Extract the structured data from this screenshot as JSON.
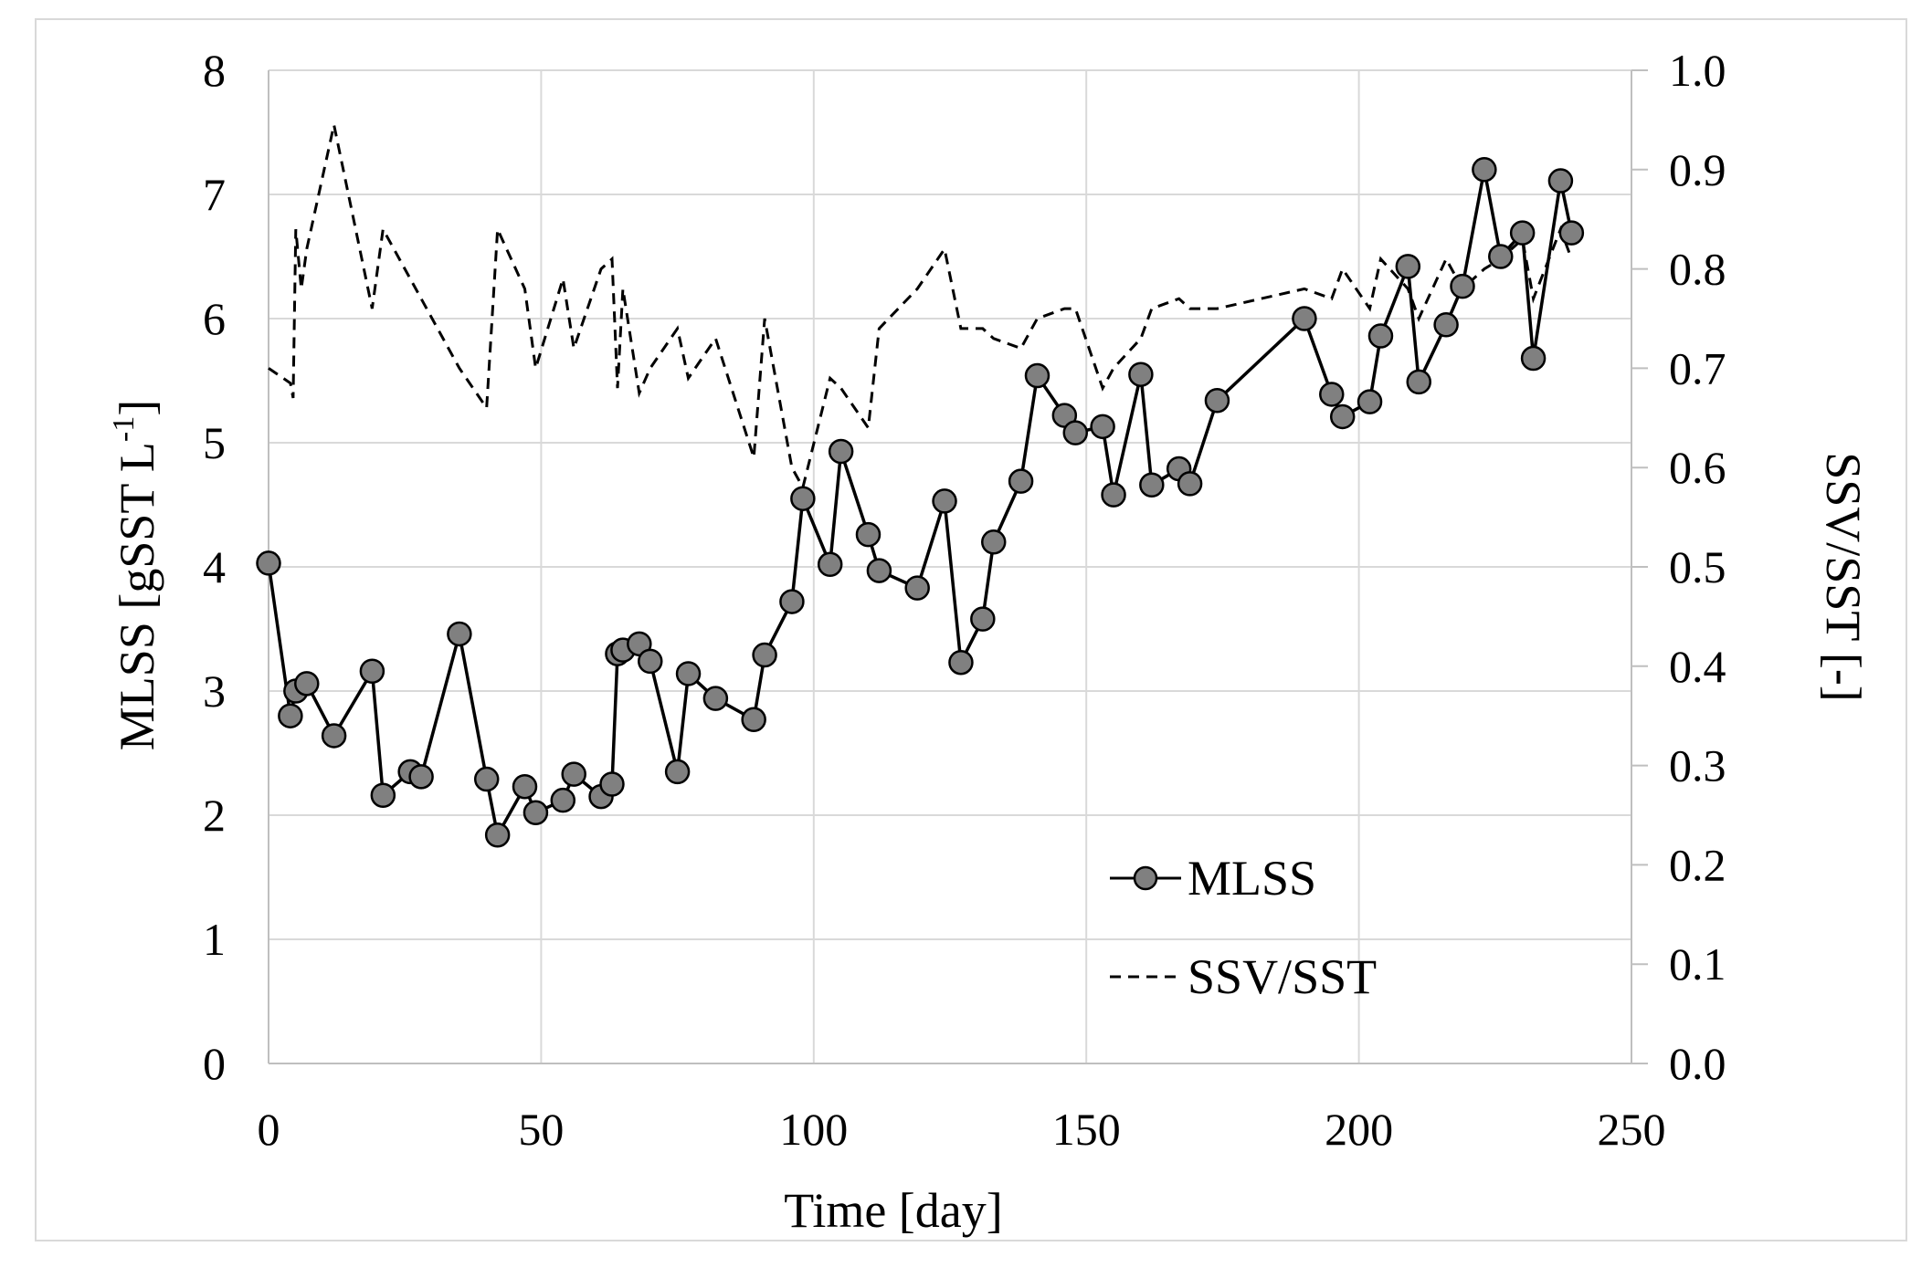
{
  "chart_data": {
    "type": "line",
    "title": "",
    "xlabel": "Time [day]",
    "ylabel_main": "MLSS [gSST L",
    "ylabel_sup": "-1",
    "ylabel_end": "]",
    "ylabel_right": "SSV/SST [-]",
    "xlim": [
      0,
      250
    ],
    "ylim": [
      0,
      8
    ],
    "ylim_right": [
      0,
      1.0
    ],
    "xticks": [
      "0",
      "50",
      "100",
      "150",
      "200",
      "250"
    ],
    "yticks": [
      "0",
      "1",
      "2",
      "3",
      "4",
      "5",
      "6",
      "7",
      "8"
    ],
    "yticks_right": [
      "0.0",
      "0.1",
      "0.2",
      "0.3",
      "0.4",
      "0.5",
      "0.6",
      "0.7",
      "0.8",
      "0.9",
      "1.0"
    ],
    "grid": true,
    "legend_position": "bottom-right",
    "colors": {
      "marker_fill": "#808080",
      "line": "#000000",
      "grid": "#d9d9d9",
      "axis": "#bfbfbf"
    },
    "series": [
      {
        "name": "MLSS",
        "axis": "left",
        "style": "solid-with-markers",
        "points": [
          [
            0,
            4.03
          ],
          [
            4,
            2.8
          ],
          [
            5,
            3.0
          ],
          [
            7,
            3.06
          ],
          [
            12,
            2.64
          ],
          [
            19,
            3.16
          ],
          [
            21,
            2.16
          ],
          [
            26,
            2.35
          ],
          [
            28,
            2.31
          ],
          [
            35,
            3.46
          ],
          [
            40,
            2.29
          ],
          [
            42,
            1.84
          ],
          [
            47,
            2.23
          ],
          [
            49,
            2.02
          ],
          [
            54,
            2.12
          ],
          [
            56,
            2.33
          ],
          [
            61,
            2.15
          ],
          [
            63,
            2.25
          ],
          [
            64,
            3.3
          ],
          [
            65,
            3.33
          ],
          [
            68,
            3.38
          ],
          [
            70,
            3.24
          ],
          [
            75,
            2.35
          ],
          [
            77,
            3.14
          ],
          [
            82,
            2.94
          ],
          [
            89,
            2.77
          ],
          [
            91,
            3.29
          ],
          [
            96,
            3.72
          ],
          [
            98,
            4.55
          ],
          [
            103,
            4.02
          ],
          [
            105,
            4.93
          ],
          [
            110,
            4.26
          ],
          [
            112,
            3.97
          ],
          [
            119,
            3.83
          ],
          [
            124,
            4.53
          ],
          [
            127,
            3.23
          ],
          [
            131,
            3.58
          ],
          [
            133,
            4.2
          ],
          [
            138,
            4.69
          ],
          [
            141,
            5.54
          ],
          [
            146,
            5.22
          ],
          [
            148,
            5.08
          ],
          [
            153,
            5.13
          ],
          [
            155,
            4.58
          ],
          [
            160,
            5.55
          ],
          [
            162,
            4.66
          ],
          [
            167,
            4.79
          ],
          [
            169,
            4.67
          ],
          [
            174,
            5.34
          ],
          [
            190,
            6.0
          ],
          [
            195,
            5.39
          ],
          [
            197,
            5.21
          ],
          [
            202,
            5.33
          ],
          [
            204,
            5.86
          ],
          [
            209,
            6.42
          ],
          [
            211,
            5.49
          ],
          [
            216,
            5.95
          ],
          [
            219,
            6.26
          ],
          [
            223,
            7.2
          ],
          [
            226,
            6.5
          ],
          [
            230,
            6.69
          ],
          [
            232,
            5.68
          ],
          [
            237,
            7.11
          ],
          [
            239,
            6.69
          ]
        ]
      },
      {
        "name": "SSV/SST",
        "axis": "right",
        "style": "dashed",
        "points": [
          [
            0,
            0.7
          ],
          [
            4,
            0.685
          ],
          [
            4.5,
            0.67
          ],
          [
            5,
            0.84
          ],
          [
            6,
            0.78
          ],
          [
            7,
            0.82
          ],
          [
            12,
            0.945
          ],
          [
            19,
            0.76
          ],
          [
            21,
            0.84
          ],
          [
            28,
            0.77
          ],
          [
            35,
            0.7
          ],
          [
            40,
            0.66
          ],
          [
            42,
            0.84
          ],
          [
            47,
            0.78
          ],
          [
            49,
            0.7
          ],
          [
            54,
            0.79
          ],
          [
            56,
            0.72
          ],
          [
            61,
            0.8
          ],
          [
            63,
            0.81
          ],
          [
            64,
            0.68
          ],
          [
            65,
            0.78
          ],
          [
            68,
            0.675
          ],
          [
            70,
            0.7
          ],
          [
            75,
            0.74
          ],
          [
            77,
            0.69
          ],
          [
            82,
            0.73
          ],
          [
            89,
            0.61
          ],
          [
            91,
            0.75
          ],
          [
            96,
            0.6
          ],
          [
            98,
            0.58
          ],
          [
            103,
            0.69
          ],
          [
            105,
            0.68
          ],
          [
            110,
            0.64
          ],
          [
            112,
            0.74
          ],
          [
            119,
            0.78
          ],
          [
            124,
            0.82
          ],
          [
            127,
            0.74
          ],
          [
            131,
            0.74
          ],
          [
            133,
            0.73
          ],
          [
            138,
            0.72
          ],
          [
            141,
            0.75
          ],
          [
            146,
            0.76
          ],
          [
            148,
            0.76
          ],
          [
            153,
            0.68
          ],
          [
            155,
            0.7
          ],
          [
            160,
            0.73
          ],
          [
            162,
            0.76
          ],
          [
            167,
            0.77
          ],
          [
            169,
            0.76
          ],
          [
            174,
            0.76
          ],
          [
            190,
            0.78
          ],
          [
            195,
            0.77
          ],
          [
            197,
            0.8
          ],
          [
            202,
            0.76
          ],
          [
            204,
            0.81
          ],
          [
            209,
            0.78
          ],
          [
            211,
            0.75
          ],
          [
            216,
            0.81
          ],
          [
            219,
            0.78
          ],
          [
            223,
            0.8
          ],
          [
            226,
            0.81
          ],
          [
            230,
            0.83
          ],
          [
            232,
            0.77
          ],
          [
            237,
            0.84
          ],
          [
            239,
            0.81
          ]
        ]
      }
    ]
  }
}
